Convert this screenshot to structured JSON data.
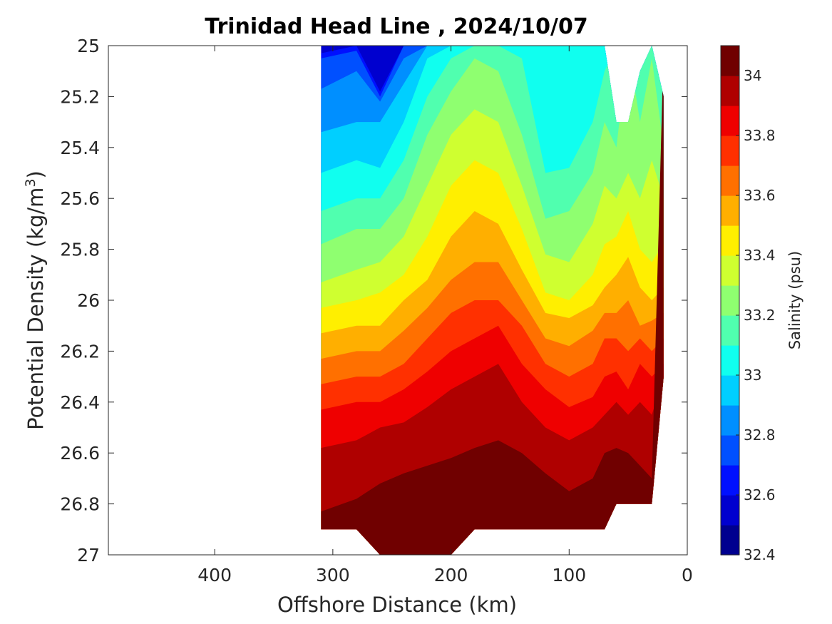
{
  "chart_data": {
    "type": "heatmap",
    "subtype": "filled-contour",
    "title": "Trinidad Head Line , 2024/10/07",
    "xlabel": "Offshore Distance (km)",
    "ylabel_main": "Potential Density (kg/m",
    "ylabel_sup": "3",
    "ylabel_tail": ")",
    "xlim": [
      490,
      0
    ],
    "ylim": [
      25,
      27
    ],
    "x_reversed": true,
    "y_reversed": true,
    "xticks": [
      400,
      300,
      200,
      100,
      0
    ],
    "xtick_labels": [
      "400",
      "300",
      "200",
      "100",
      "0"
    ],
    "yticks": [
      25,
      25.2,
      25.4,
      25.6,
      25.8,
      26,
      26.2,
      26.4,
      26.6,
      26.8,
      27
    ],
    "ytick_labels": [
      "25",
      "25.2",
      "25.4",
      "25.6",
      "25.8",
      "26",
      "26.2",
      "26.4",
      "26.6",
      "26.8",
      "27"
    ],
    "colorbar": {
      "label": "Salinity (psu)",
      "range": [
        32.4,
        34.1
      ],
      "step": 0.1,
      "ticks": [
        32.4,
        32.6,
        32.8,
        33,
        33.2,
        33.4,
        33.6,
        33.8,
        34
      ],
      "tick_labels": [
        "32.4",
        "32.6",
        "32.8",
        "33",
        "33.2",
        "33.4",
        "33.6",
        "33.8",
        "34"
      ],
      "colors": [
        "#00008f",
        "#0000cf",
        "#0010ff",
        "#0050ff",
        "#008fff",
        "#00cfff",
        "#10ffef",
        "#50ffaf",
        "#8fff70",
        "#cfff30",
        "#ffef00",
        "#ffaf00",
        "#ff7000",
        "#ff3000",
        "#ef0000",
        "#af0000",
        "#700000"
      ]
    },
    "stations_km": [
      310,
      280,
      260,
      240,
      220,
      200,
      180,
      160,
      140,
      120,
      100,
      80,
      70,
      60,
      50,
      40,
      30,
      20
    ],
    "data_extent": {
      "x_min_km": 20,
      "x_max_km": 310,
      "density_bottom_by_station": [
        26.9,
        26.9,
        27.0,
        27.0,
        27.0,
        27.0,
        26.9,
        26.9,
        26.9,
        26.9,
        26.9,
        26.9,
        26.9,
        26.8,
        26.8,
        26.8,
        26.8,
        26.3
      ],
      "density_top_by_station": [
        25.0,
        25.0,
        25.0,
        25.0,
        25.0,
        25.0,
        25.0,
        25.0,
        25.0,
        25.0,
        25.0,
        25.0,
        25.0,
        25.3,
        25.3,
        25.1,
        25.0,
        25.2
      ]
    },
    "isohalines_density": {
      "32.6": [
        25.03,
        25.0,
        25.18,
        25.0,
        null,
        null,
        null,
        null,
        null,
        null,
        null,
        null,
        null,
        null,
        null,
        null,
        null,
        null
      ],
      "32.7": [
        25.05,
        25.02,
        25.2,
        25.0,
        null,
        null,
        null,
        null,
        null,
        null,
        null,
        null,
        null,
        null,
        null,
        null,
        null,
        null
      ],
      "32.8": [
        25.17,
        25.1,
        25.22,
        25.05,
        null,
        null,
        null,
        null,
        null,
        null,
        null,
        null,
        null,
        null,
        null,
        null,
        null,
        null
      ],
      "32.9": [
        25.34,
        25.3,
        25.3,
        25.15,
        25.0,
        null,
        null,
        null,
        null,
        null,
        null,
        null,
        null,
        null,
        null,
        null,
        null,
        null
      ],
      "33.0": [
        25.5,
        25.45,
        25.48,
        25.3,
        25.05,
        null,
        null,
        null,
        null,
        null,
        null,
        25.0,
        null,
        null,
        null,
        null,
        null,
        null
      ],
      "33.1": [
        25.65,
        25.6,
        25.6,
        25.45,
        25.2,
        25.05,
        null,
        null,
        25.05,
        25.5,
        25.48,
        25.3,
        25.1,
        null,
        null,
        null,
        null,
        25.2
      ],
      "33.2": [
        25.78,
        25.72,
        25.72,
        25.6,
        25.35,
        25.18,
        25.05,
        25.1,
        25.35,
        25.68,
        25.65,
        25.5,
        25.3,
        25.4,
        null,
        25.3,
        25.05,
        25.4
      ],
      "33.3": [
        25.93,
        25.88,
        25.85,
        25.75,
        25.55,
        25.35,
        25.25,
        25.3,
        25.55,
        25.82,
        25.85,
        25.7,
        25.55,
        25.6,
        25.5,
        25.6,
        25.45,
        25.6
      ],
      "33.4": [
        26.03,
        26.0,
        25.97,
        25.9,
        25.75,
        25.55,
        25.45,
        25.5,
        25.72,
        25.97,
        26.0,
        25.9,
        25.78,
        25.75,
        25.65,
        25.8,
        25.85,
        25.78
      ],
      "33.5": [
        26.13,
        26.1,
        26.1,
        26.0,
        25.92,
        25.75,
        25.65,
        25.7,
        25.88,
        26.05,
        26.07,
        26.02,
        25.95,
        25.9,
        25.83,
        25.95,
        26.0,
        25.95
      ],
      "33.6": [
        26.23,
        26.2,
        26.2,
        26.12,
        26.03,
        25.92,
        25.85,
        25.85,
        26.0,
        26.15,
        26.18,
        26.12,
        26.05,
        26.05,
        26.0,
        26.1,
        26.08,
        26.05
      ],
      "33.7": [
        26.33,
        26.3,
        26.3,
        26.25,
        26.15,
        26.05,
        26.0,
        26.0,
        26.1,
        26.25,
        26.3,
        26.25,
        26.15,
        26.15,
        26.2,
        26.15,
        26.2,
        26.15
      ],
      "33.8": [
        26.43,
        26.4,
        26.4,
        26.35,
        26.28,
        26.2,
        26.15,
        26.1,
        26.25,
        26.35,
        26.42,
        26.38,
        26.3,
        26.28,
        26.35,
        26.25,
        26.3,
        26.25
      ],
      "33.9": [
        26.58,
        26.55,
        26.5,
        26.48,
        26.42,
        26.35,
        26.3,
        26.25,
        26.4,
        26.5,
        26.55,
        26.5,
        26.45,
        26.4,
        26.45,
        26.4,
        26.45,
        26.3
      ],
      "34.0": [
        26.83,
        26.78,
        26.72,
        26.68,
        26.65,
        26.62,
        26.58,
        26.55,
        26.6,
        26.68,
        26.75,
        26.7,
        26.6,
        26.58,
        26.6,
        26.65,
        26.7,
        null
      ]
    }
  }
}
